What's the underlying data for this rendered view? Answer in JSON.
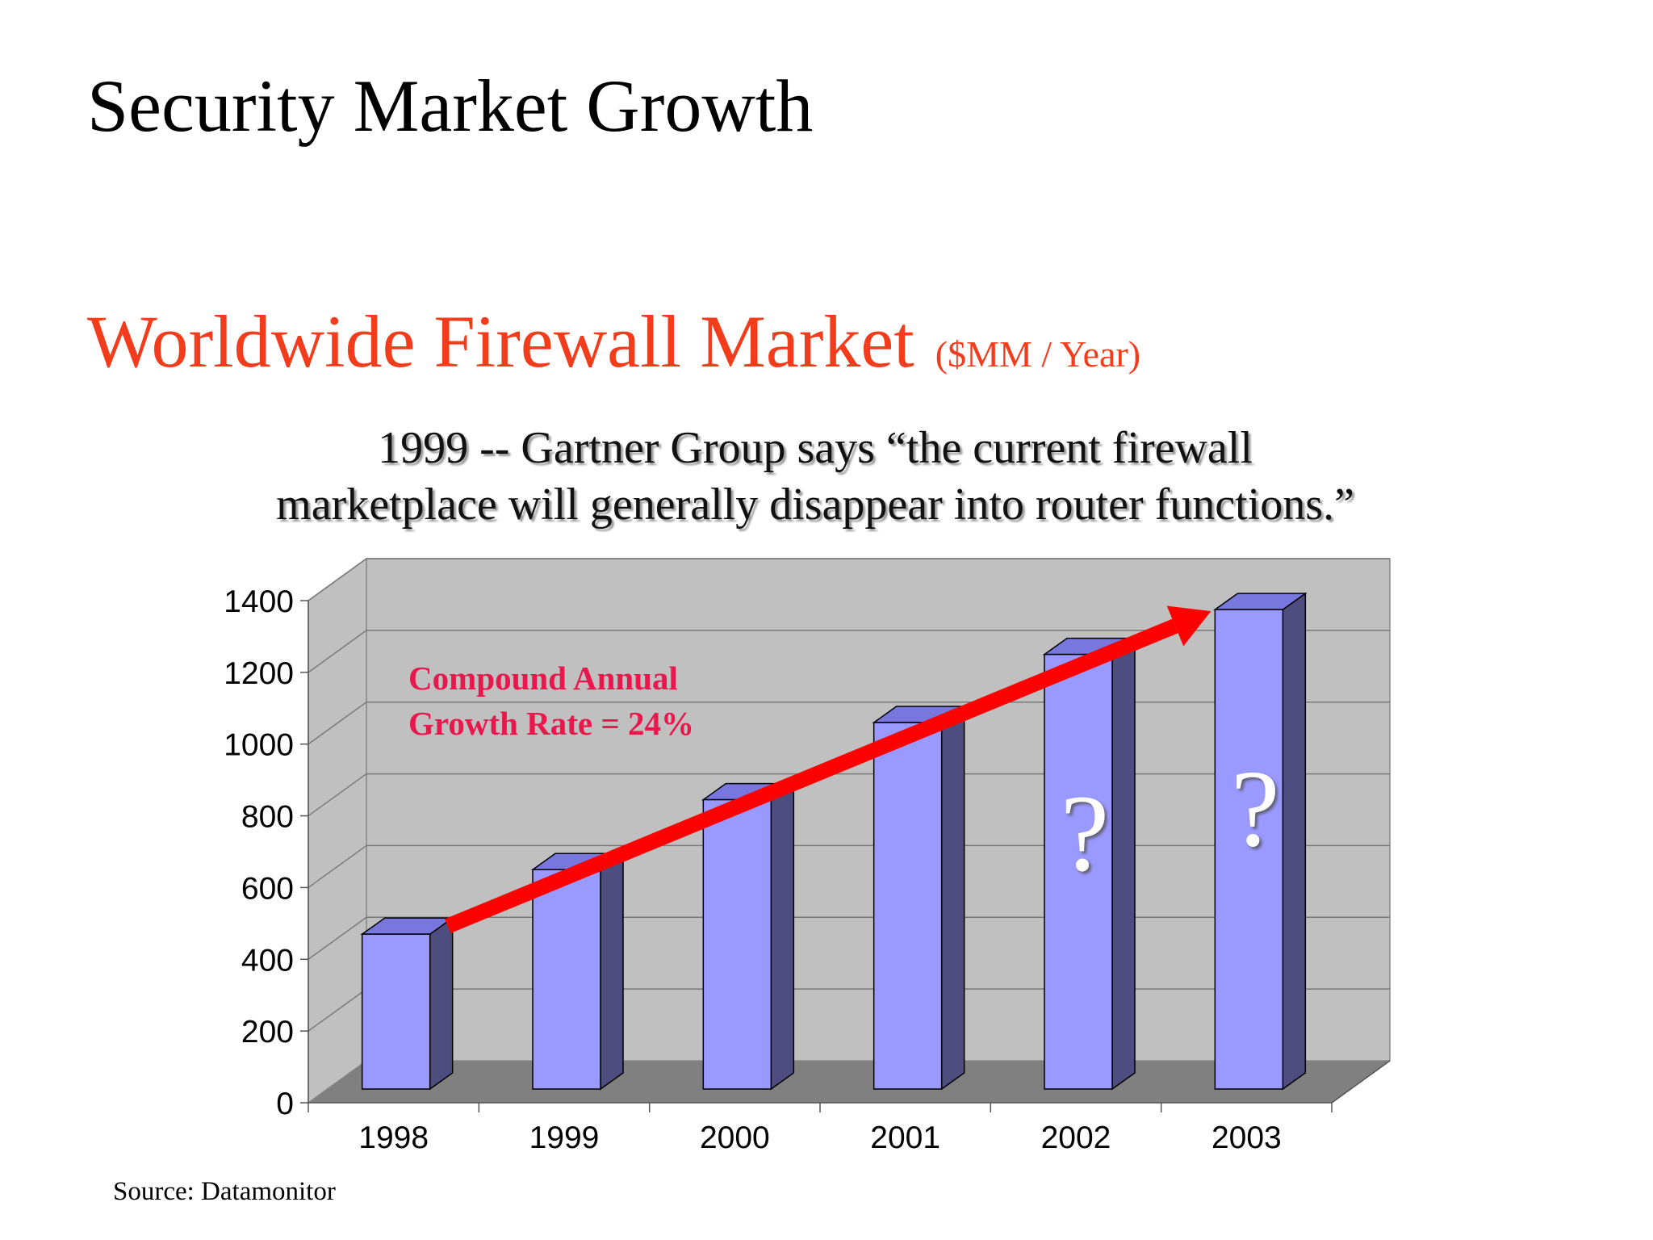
{
  "slide": {
    "title": "Security Market Growth",
    "chart_title": "Worldwide Firewall Market",
    "chart_unit": "($MM / Year)",
    "quote_line1": "1999 -- Gartner Group says “the current firewall",
    "quote_line2": "marketplace will generally disappear into router functions.”",
    "source": "Source: Datamonitor"
  },
  "colors": {
    "title_red": "#f23c1c",
    "bar_front": "#9999ff",
    "bar_side": "#4d4d80",
    "bar_top": "#7777dd",
    "wall": "#c0c0c0",
    "floor": "#808080",
    "arrow": "#ff0000",
    "annotation": "#e8174c"
  },
  "chart_data": {
    "type": "bar",
    "categories": [
      "1998",
      "1999",
      "2000",
      "2001",
      "2002",
      "2003"
    ],
    "values": [
      470,
      650,
      845,
      1060,
      1250,
      1375
    ],
    "ylim": [
      0,
      1400
    ],
    "yticks": [
      0,
      200,
      400,
      600,
      800,
      1000,
      1200,
      1400
    ],
    "grid": true,
    "style": "3d-column",
    "annotation_line1": "Compound Annual",
    "annotation_line2": "Growth Rate = 24%",
    "projected_mark": "?",
    "projected_categories": [
      "2002",
      "2003"
    ],
    "trend_arrow": {
      "from": "1998",
      "to": "2003"
    }
  }
}
